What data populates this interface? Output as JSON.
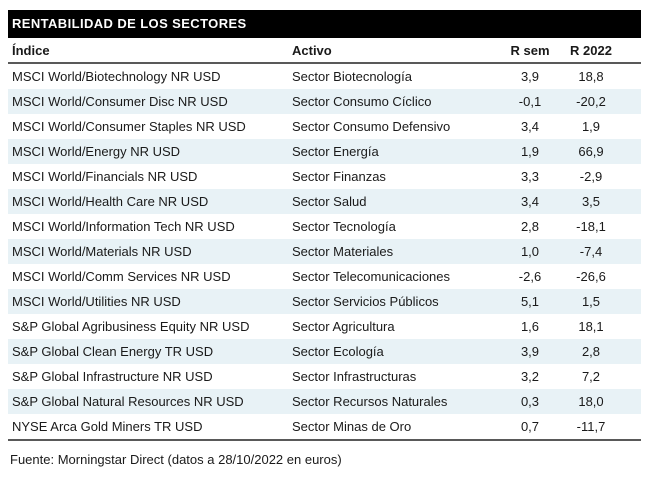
{
  "chart_data": {
    "type": "table",
    "title": "RENTABILIDAD DE LOS SECTORES",
    "columns": [
      "Índice",
      "Activo",
      "R sem",
      "R 2022"
    ],
    "rows": [
      [
        "MSCI World/Biotechnology NR USD",
        "Sector Biotecnología",
        "3,9",
        "18,8"
      ],
      [
        "MSCI World/Consumer Disc NR USD",
        "Sector Consumo Cíclico",
        "-0,1",
        "-20,2"
      ],
      [
        "MSCI World/Consumer Staples NR USD",
        "Sector Consumo Defensivo",
        "3,4",
        "1,9"
      ],
      [
        "MSCI World/Energy NR USD",
        "Sector Energía",
        "1,9",
        "66,9"
      ],
      [
        "MSCI World/Financials NR USD",
        "Sector Finanzas",
        "3,3",
        "-2,9"
      ],
      [
        "MSCI World/Health Care NR USD",
        "Sector Salud",
        "3,4",
        "3,5"
      ],
      [
        "MSCI World/Information Tech NR USD",
        "Sector Tecnología",
        "2,8",
        "-18,1"
      ],
      [
        "MSCI World/Materials NR USD",
        "Sector Materiales",
        "1,0",
        "-7,4"
      ],
      [
        "MSCI World/Comm Services NR USD",
        "Sector Telecomunicaciones",
        "-2,6",
        "-26,6"
      ],
      [
        "MSCI World/Utilities NR USD",
        "Sector Servicios Públicos",
        "5,1",
        "1,5"
      ],
      [
        "S&P Global Agribusiness Equity NR USD",
        "Sector Agricultura",
        "1,6",
        "18,1"
      ],
      [
        "S&P Global Clean Energy TR USD",
        "Sector Ecología",
        "3,9",
        "2,8"
      ],
      [
        "S&P Global Infrastructure NR USD",
        "Sector Infrastructuras",
        "3,2",
        "7,2"
      ],
      [
        "S&P Global Natural Resources NR USD",
        "Sector Recursos Naturales",
        "0,3",
        "18,0"
      ],
      [
        "NYSE Arca Gold Miners TR USD",
        "Sector Minas de Oro",
        "0,7",
        "-11,7"
      ]
    ],
    "source": "Fuente: Morningstar Direct (datos a 28/10/2022 en euros)",
    "layout": {
      "zebra_striping": true,
      "numeric_alignment": "center"
    }
  },
  "colors": {
    "titlebar_bg": "#000000",
    "title_text": "#ffffff",
    "alt_row_bg": "#e8f2f6",
    "rule": "#595959",
    "text": "#1a1a1a"
  }
}
